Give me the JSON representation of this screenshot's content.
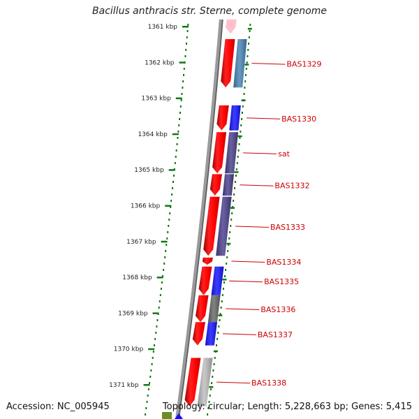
{
  "title": "Bacillus anthracis str. Sterne, complete genome",
  "accession": "Accession: NC_005945",
  "topology": "Topology: circular; Length: 5,228,663 bp; Genes: 5,415",
  "colors": {
    "forward_gene": "#ff0000",
    "backbone": "#8a8a8a",
    "tick": "#117711",
    "label": "#cc0000",
    "blue": "#1010ff",
    "steel_blue": "#4682b4",
    "dark_slate_blue": "#483d8b",
    "gray": "#666666",
    "light_gray": "#bbbbbb",
    "pink": "#ffc0cb",
    "olive": "#6b8e23"
  },
  "scale": {
    "unit": "kbp",
    "ticks": [
      {
        "kbp": 1361,
        "label": "1361 kbp"
      },
      {
        "kbp": 1362,
        "label": "1362 kbp"
      },
      {
        "kbp": 1363,
        "label": "1363 kbp"
      },
      {
        "kbp": 1364,
        "label": "1364 kbp"
      },
      {
        "kbp": 1365,
        "label": "1365 kbp"
      },
      {
        "kbp": 1366,
        "label": "1366 kbp"
      },
      {
        "kbp": 1367,
        "label": "1367 kbp"
      },
      {
        "kbp": 1368,
        "label": "1368 kbp"
      },
      {
        "kbp": 1369,
        "label": "1369 kbp"
      },
      {
        "kbp": 1370,
        "label": "1370 kbp"
      },
      {
        "kbp": 1371,
        "label": "1371 kbp"
      }
    ]
  },
  "genes": [
    {
      "label": "",
      "start": 1360.8,
      "end": 1361.2,
      "color": "#ff0000",
      "cog": "#ffc0cb"
    },
    {
      "label": "BAS1329",
      "start": 1361.35,
      "end": 1362.7,
      "color": "#ff0000",
      "cog": "#4682b4"
    },
    {
      "label": "BAS1330",
      "start": 1363.2,
      "end": 1363.9,
      "color": "#ff0000",
      "cog": "#1010ff"
    },
    {
      "label": "sat",
      "start": 1363.95,
      "end": 1365.1,
      "color": "#ff0000",
      "cog": "#483d8b"
    },
    {
      "label": "BAS1332",
      "start": 1365.12,
      "end": 1365.72,
      "color": "#ff0000",
      "cog": "#483d8b"
    },
    {
      "label": "BAS1333",
      "start": 1365.75,
      "end": 1367.4,
      "color": "#ff0000",
      "cog": "#483d8b"
    },
    {
      "label": "BAS1334",
      "start": 1367.45,
      "end": 1367.65,
      "color": "#ff0000",
      "cog": ""
    },
    {
      "label": "BAS1335",
      "start": 1367.7,
      "end": 1368.5,
      "color": "#ff0000",
      "cog": "#1010ff"
    },
    {
      "label": "BAS1336",
      "start": 1368.5,
      "end": 1369.25,
      "color": "#ff0000",
      "cog": "#666666"
    },
    {
      "label": "BAS1337",
      "start": 1369.25,
      "end": 1369.9,
      "color": "#ff0000",
      "cog": "#1010ff"
    },
    {
      "label": "BAS1338",
      "start": 1370.25,
      "end": 1371.6,
      "color": "#ff0000",
      "cog": "#bbbbbb"
    }
  ],
  "partial_features": [
    {
      "name": "olive-feature",
      "color": "#6b8e23"
    },
    {
      "name": "blue-feature",
      "color": "#1010ff"
    }
  ]
}
